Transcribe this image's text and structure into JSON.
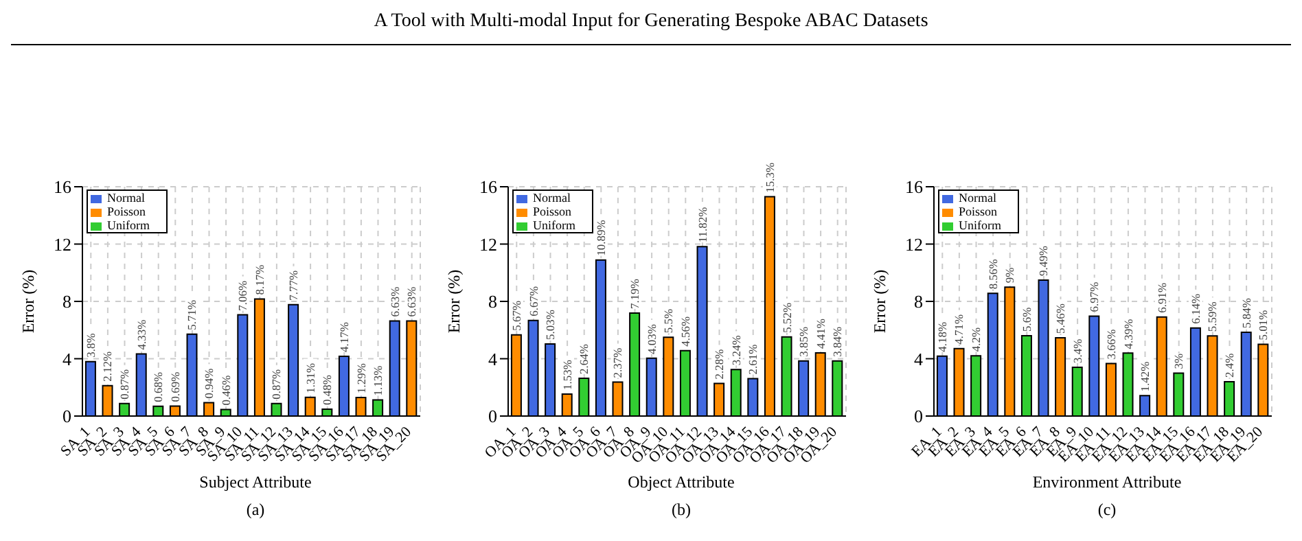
{
  "chart_data": [
    {
      "type": "bar",
      "stacked": true,
      "ylabel": "Error (%)",
      "xlabel": "Subject Attribute",
      "ylim": [
        0,
        16
      ],
      "yticks": [
        0,
        4,
        8,
        12,
        16
      ],
      "grid": true,
      "legend": "top left",
      "annotations": [
        "A Tool with Multi-modal Input for Generating Bespoke ABAC Datasets",
        "(a)"
      ],
      "categories": [
        "SA_1",
        "SA_2",
        "SA_3",
        "SA_4",
        "SA_5",
        "SA_6",
        "SA_7",
        "SA_8",
        "SA_9",
        "SA_10",
        "SA_11",
        "SA_12",
        "SA_13",
        "SA_14",
        "SA_15",
        "SA_16",
        "SA_17",
        "SA_18",
        "SA_19",
        "SA_20"
      ],
      "series": [
        {
          "name": "Normal",
          "color": "#4169e1",
          "values": [
            3.8,
            null,
            null,
            4.33,
            null,
            null,
            5.71,
            null,
            null,
            7.06,
            null,
            null,
            7.77,
            null,
            null,
            4.17,
            null,
            null,
            6.63,
            null
          ],
          "value_labels": [
            "3.8%",
            null,
            null,
            "4.33%",
            null,
            null,
            "5.71%",
            null,
            null,
            "7.06%",
            null,
            null,
            "7.77%",
            null,
            null,
            "4.17%",
            null,
            null,
            "6.63%",
            null
          ]
        },
        {
          "name": "Poisson",
          "color": "#ff8c00",
          "values": [
            null,
            2.12,
            null,
            null,
            null,
            0.69,
            null,
            0.94,
            null,
            null,
            8.17,
            null,
            null,
            1.31,
            null,
            null,
            1.29,
            null,
            null,
            6.63
          ],
          "value_labels": [
            null,
            "2.12%",
            null,
            null,
            null,
            "0.69%",
            null,
            "0.94%",
            null,
            null,
            "8.17%",
            null,
            null,
            "1.31%",
            null,
            null,
            "1.29%",
            null,
            null,
            "6.63%"
          ]
        },
        {
          "name": "Uniform",
          "color": "#32cd32",
          "values": [
            null,
            null,
            0.87,
            null,
            0.68,
            null,
            null,
            null,
            0.46,
            null,
            null,
            0.87,
            null,
            null,
            0.48,
            null,
            null,
            1.13,
            null,
            null
          ],
          "value_labels": [
            null,
            null,
            "0.87%",
            null,
            "0.68%",
            null,
            null,
            null,
            "0.46%",
            null,
            null,
            "0.87%",
            null,
            null,
            "0.48%",
            null,
            null,
            "1.13%",
            null,
            null
          ]
        }
      ]
    },
    {
      "type": "bar",
      "stacked": true,
      "ylabel": "Error (%)",
      "xlabel": "Object Attribute",
      "ylim": [
        0,
        16
      ],
      "yticks": [
        0,
        4,
        8,
        12,
        16
      ],
      "grid": true,
      "legend": "top left",
      "annotations": [
        "(b)"
      ],
      "categories": [
        "OA_1",
        "OA_2",
        "OA_3",
        "OA_4",
        "OA_5",
        "OA_6",
        "OA_7",
        "OA_8",
        "OA_9",
        "OA_10",
        "OA_11",
        "OA_12",
        "OA_13",
        "OA_14",
        "OA_15",
        "OA_16",
        "OA_17",
        "OA_18",
        "OA_19",
        "OA_20"
      ],
      "series": [
        {
          "name": "Normal",
          "color": "#4169e1",
          "values": [
            null,
            6.67,
            5.03,
            null,
            null,
            10.89,
            null,
            null,
            4.03,
            null,
            null,
            11.82,
            null,
            null,
            2.61,
            null,
            null,
            3.85,
            null,
            null
          ],
          "value_labels": [
            null,
            "6.67%",
            "5.03%",
            null,
            null,
            "10.89%",
            null,
            null,
            "4.03%",
            null,
            null,
            "11.82%",
            null,
            null,
            "2.61%",
            null,
            null,
            "3.85%",
            null,
            null
          ]
        },
        {
          "name": "Poisson",
          "color": "#ff8c00",
          "values": [
            5.67,
            null,
            null,
            1.53,
            null,
            null,
            2.37,
            null,
            null,
            5.5,
            null,
            null,
            2.28,
            null,
            null,
            15.3,
            null,
            null,
            4.41,
            null
          ],
          "value_labels": [
            "5.67%",
            null,
            null,
            "1.53%",
            null,
            null,
            "2.37%",
            null,
            null,
            "5.5%",
            null,
            null,
            "2.28%",
            null,
            null,
            "15.3%",
            null,
            null,
            "4.41%",
            null
          ]
        },
        {
          "name": "Uniform",
          "color": "#32cd32",
          "values": [
            null,
            null,
            null,
            null,
            2.64,
            null,
            null,
            7.19,
            null,
            null,
            4.56,
            null,
            null,
            3.24,
            null,
            null,
            5.52,
            null,
            null,
            3.84
          ],
          "value_labels": [
            null,
            null,
            null,
            null,
            "2.64%",
            null,
            null,
            "7.19%",
            null,
            null,
            "4.56%",
            null,
            null,
            "3.24%",
            null,
            null,
            "5.52%",
            null,
            null,
            "3.84%"
          ]
        }
      ]
    },
    {
      "type": "bar",
      "stacked": true,
      "ylabel": "Error (%)",
      "xlabel": "Environment Attribute",
      "ylim": [
        0,
        16
      ],
      "yticks": [
        0,
        4,
        8,
        12,
        16
      ],
      "grid": true,
      "legend": "top left",
      "annotations": [
        "(c)"
      ],
      "categories": [
        "EA_1",
        "EA_2",
        "EA_3",
        "EA_4",
        "EA_5",
        "EA_6",
        "EA_7",
        "EA_8",
        "EA_9",
        "EA_10",
        "EA_11",
        "EA_12",
        "EA_13",
        "EA_14",
        "EA_15",
        "EA_16",
        "EA_17",
        "EA_18",
        "EA_19",
        "EA_20"
      ],
      "series": [
        {
          "name": "Normal",
          "color": "#4169e1",
          "values": [
            4.18,
            null,
            null,
            8.56,
            null,
            null,
            9.49,
            null,
            null,
            6.97,
            null,
            null,
            1.42,
            null,
            null,
            6.14,
            null,
            null,
            5.84,
            null
          ],
          "value_labels": [
            "4.18%",
            null,
            null,
            "8.56%",
            null,
            null,
            "9.49%",
            null,
            null,
            "6.97%",
            null,
            null,
            "1.42%",
            null,
            null,
            "6.14%",
            null,
            null,
            "5.84%",
            null
          ]
        },
        {
          "name": "Poisson",
          "color": "#ff8c00",
          "values": [
            null,
            4.71,
            null,
            null,
            9,
            null,
            null,
            5.46,
            null,
            null,
            3.66,
            null,
            null,
            6.91,
            null,
            null,
            5.59,
            null,
            null,
            5.01
          ],
          "value_labels": [
            null,
            "4.71%",
            null,
            null,
            "9%",
            null,
            null,
            "5.46%",
            null,
            null,
            "3.66%",
            null,
            null,
            "6.91%",
            null,
            null,
            "5.59%",
            null,
            null,
            "5.01%"
          ]
        },
        {
          "name": "Uniform",
          "color": "#32cd32",
          "values": [
            null,
            null,
            4.2,
            null,
            null,
            5.6,
            null,
            null,
            3.4,
            null,
            null,
            4.39,
            null,
            null,
            3,
            null,
            null,
            2.4,
            null,
            null
          ],
          "value_labels": [
            null,
            null,
            "4.2%",
            null,
            null,
            "5.6%",
            null,
            null,
            "3.4%",
            null,
            null,
            "4.39%",
            null,
            null,
            "3%",
            null,
            null,
            "2.4%",
            null,
            null
          ]
        }
      ]
    }
  ]
}
